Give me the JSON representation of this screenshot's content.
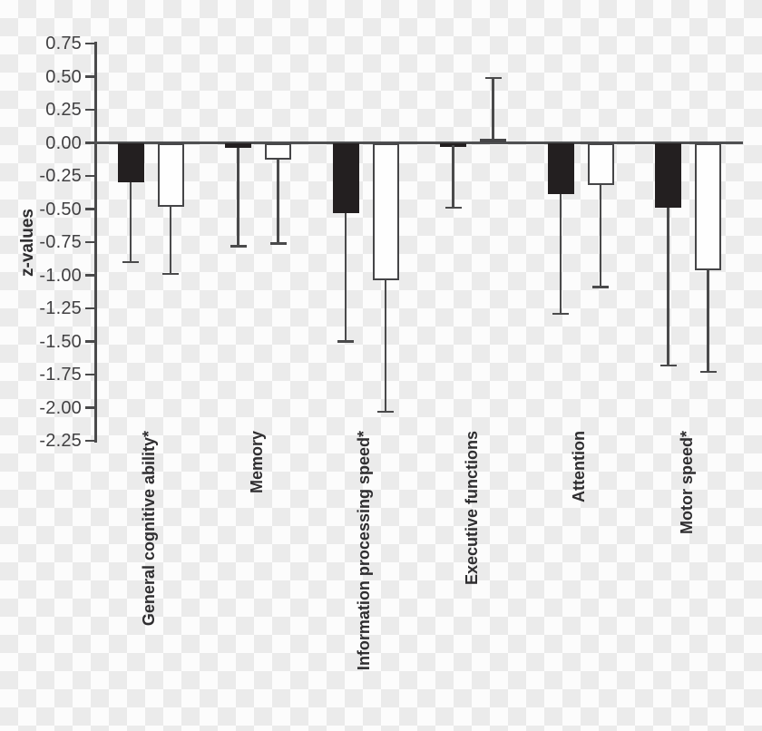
{
  "chart_data": {
    "type": "bar",
    "title": "",
    "xlabel": "",
    "ylabel": "z-values",
    "ylim": [
      -2.25,
      0.75
    ],
    "ytick_step": 0.25,
    "yticks": [
      "0.75",
      "0.50",
      "0.25",
      "0.00",
      "-0.25",
      "-0.50",
      "-0.75",
      "-1.00",
      "-1.25",
      "-1.50",
      "-1.75",
      "-2.00",
      "-2.25"
    ],
    "grid": false,
    "legend_position": "none",
    "orientation": "vertical",
    "error_bars": "one-sided, extending away from zero",
    "categories": [
      "General cognitive ability*",
      "Memory",
      "Information processing speed*",
      "Executive functions",
      "Attention",
      "Motor speed*"
    ],
    "series": [
      {
        "name": "filled-bars",
        "style": "black-filled",
        "values": [
          -0.3,
          -0.04,
          -0.53,
          -0.02,
          -0.39,
          -0.49
        ],
        "error_to": [
          -0.9,
          -0.78,
          -1.5,
          -0.49,
          -1.29,
          -1.68
        ]
      },
      {
        "name": "open-bars",
        "style": "white-open",
        "values": [
          -0.48,
          -0.13,
          -1.04,
          0.03,
          -0.32,
          -0.96
        ],
        "error_to": [
          -0.99,
          -0.76,
          -2.03,
          0.49,
          -1.09,
          -1.73
        ]
      }
    ],
    "colors": {
      "filled_bar": "#231f20",
      "open_bar_fill": "#fefefe",
      "line": "#4a4a4b",
      "text": "#2f2e30"
    }
  }
}
